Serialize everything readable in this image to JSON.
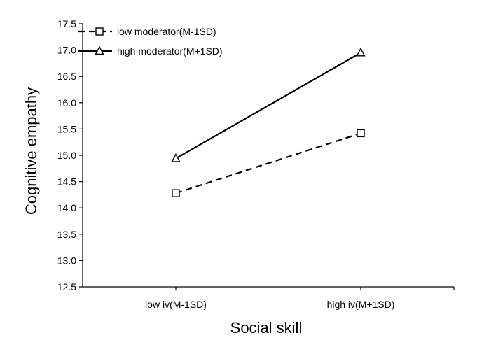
{
  "chart_data": {
    "type": "line",
    "categories": [
      "low iv(M-1SD)",
      "high iv(M+1SD)"
    ],
    "series": [
      {
        "name": "low moderator(M-1SD)",
        "values": [
          14.28,
          15.42
        ],
        "line_style": "dashed",
        "marker": "square"
      },
      {
        "name": "high moderator(M+1SD)",
        "values": [
          14.94,
          16.95
        ],
        "line_style": "solid",
        "marker": "triangle"
      }
    ],
    "title": "",
    "xlabel": "Social skill",
    "ylabel": "Cognitive empathy",
    "ylim": [
      12.5,
      17.5
    ],
    "yticks": [
      "12.5",
      "13.0",
      "13.5",
      "14.0",
      "14.5",
      "15.0",
      "15.5",
      "16.0",
      "16.5",
      "17.0",
      "17.5"
    ],
    "grid": false,
    "legend_position": "top-left",
    "line_color": "#000000"
  }
}
